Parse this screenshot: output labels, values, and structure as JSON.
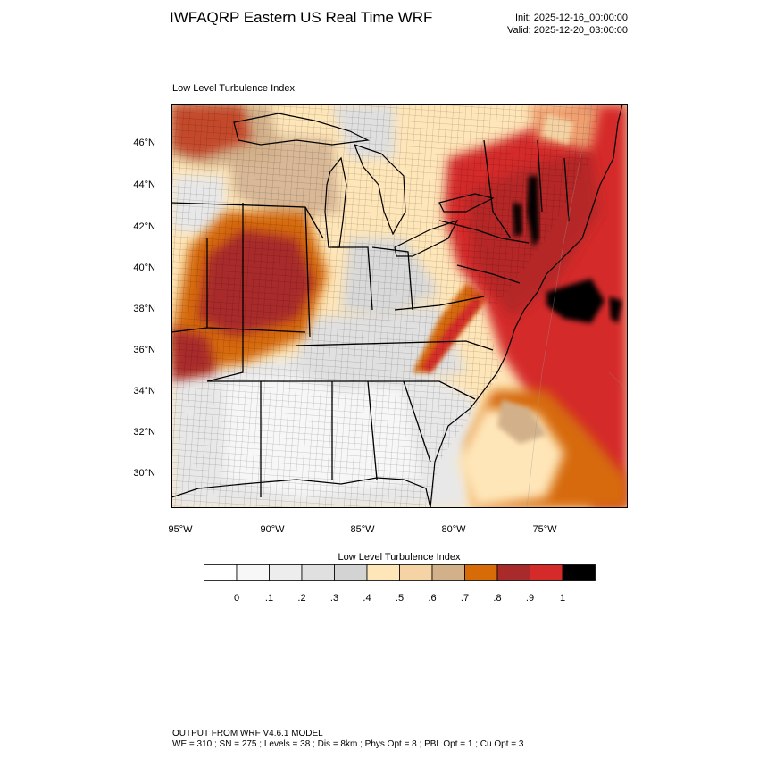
{
  "header": {
    "title": "IWFAQRP Eastern US Real Time WRF",
    "init": "Init: 2025-12-16_00:00:00",
    "valid": "Valid: 2025-12-20_03:00:00"
  },
  "map": {
    "subtitle": "Low Level Turbulence Index",
    "lat_labels": [
      "46°N",
      "44°N",
      "42°N",
      "40°N",
      "38°N",
      "36°N",
      "34°N",
      "32°N",
      "30°N"
    ],
    "lon_labels": [
      "95°W",
      "90°W",
      "85°W",
      "80°W",
      "75°W"
    ]
  },
  "colorbar": {
    "title": "Low Level Turbulence Index",
    "labels": [
      "0",
      ".1",
      ".2",
      ".3",
      ".4",
      ".5",
      ".6",
      ".7",
      ".8",
      ".9",
      "1"
    ],
    "colors": [
      "#ffffff",
      "#f7f7f7",
      "#ededed",
      "#e0e0e0",
      "#d3d3d3",
      "#ffe6b8",
      "#f5d3a4",
      "#d2b08a",
      "#d66b08",
      "#a92a2a",
      "#d42a2a",
      "#000000"
    ]
  },
  "footer": {
    "line1": "OUTPUT FROM WRF V4.6.1 MODEL",
    "line2": "WE = 310 ; SN = 275 ; Levels = 38 ; Dis = 8km ; Phys Opt = 8 ; PBL Opt = 1 ; Cu Opt = 3"
  }
}
